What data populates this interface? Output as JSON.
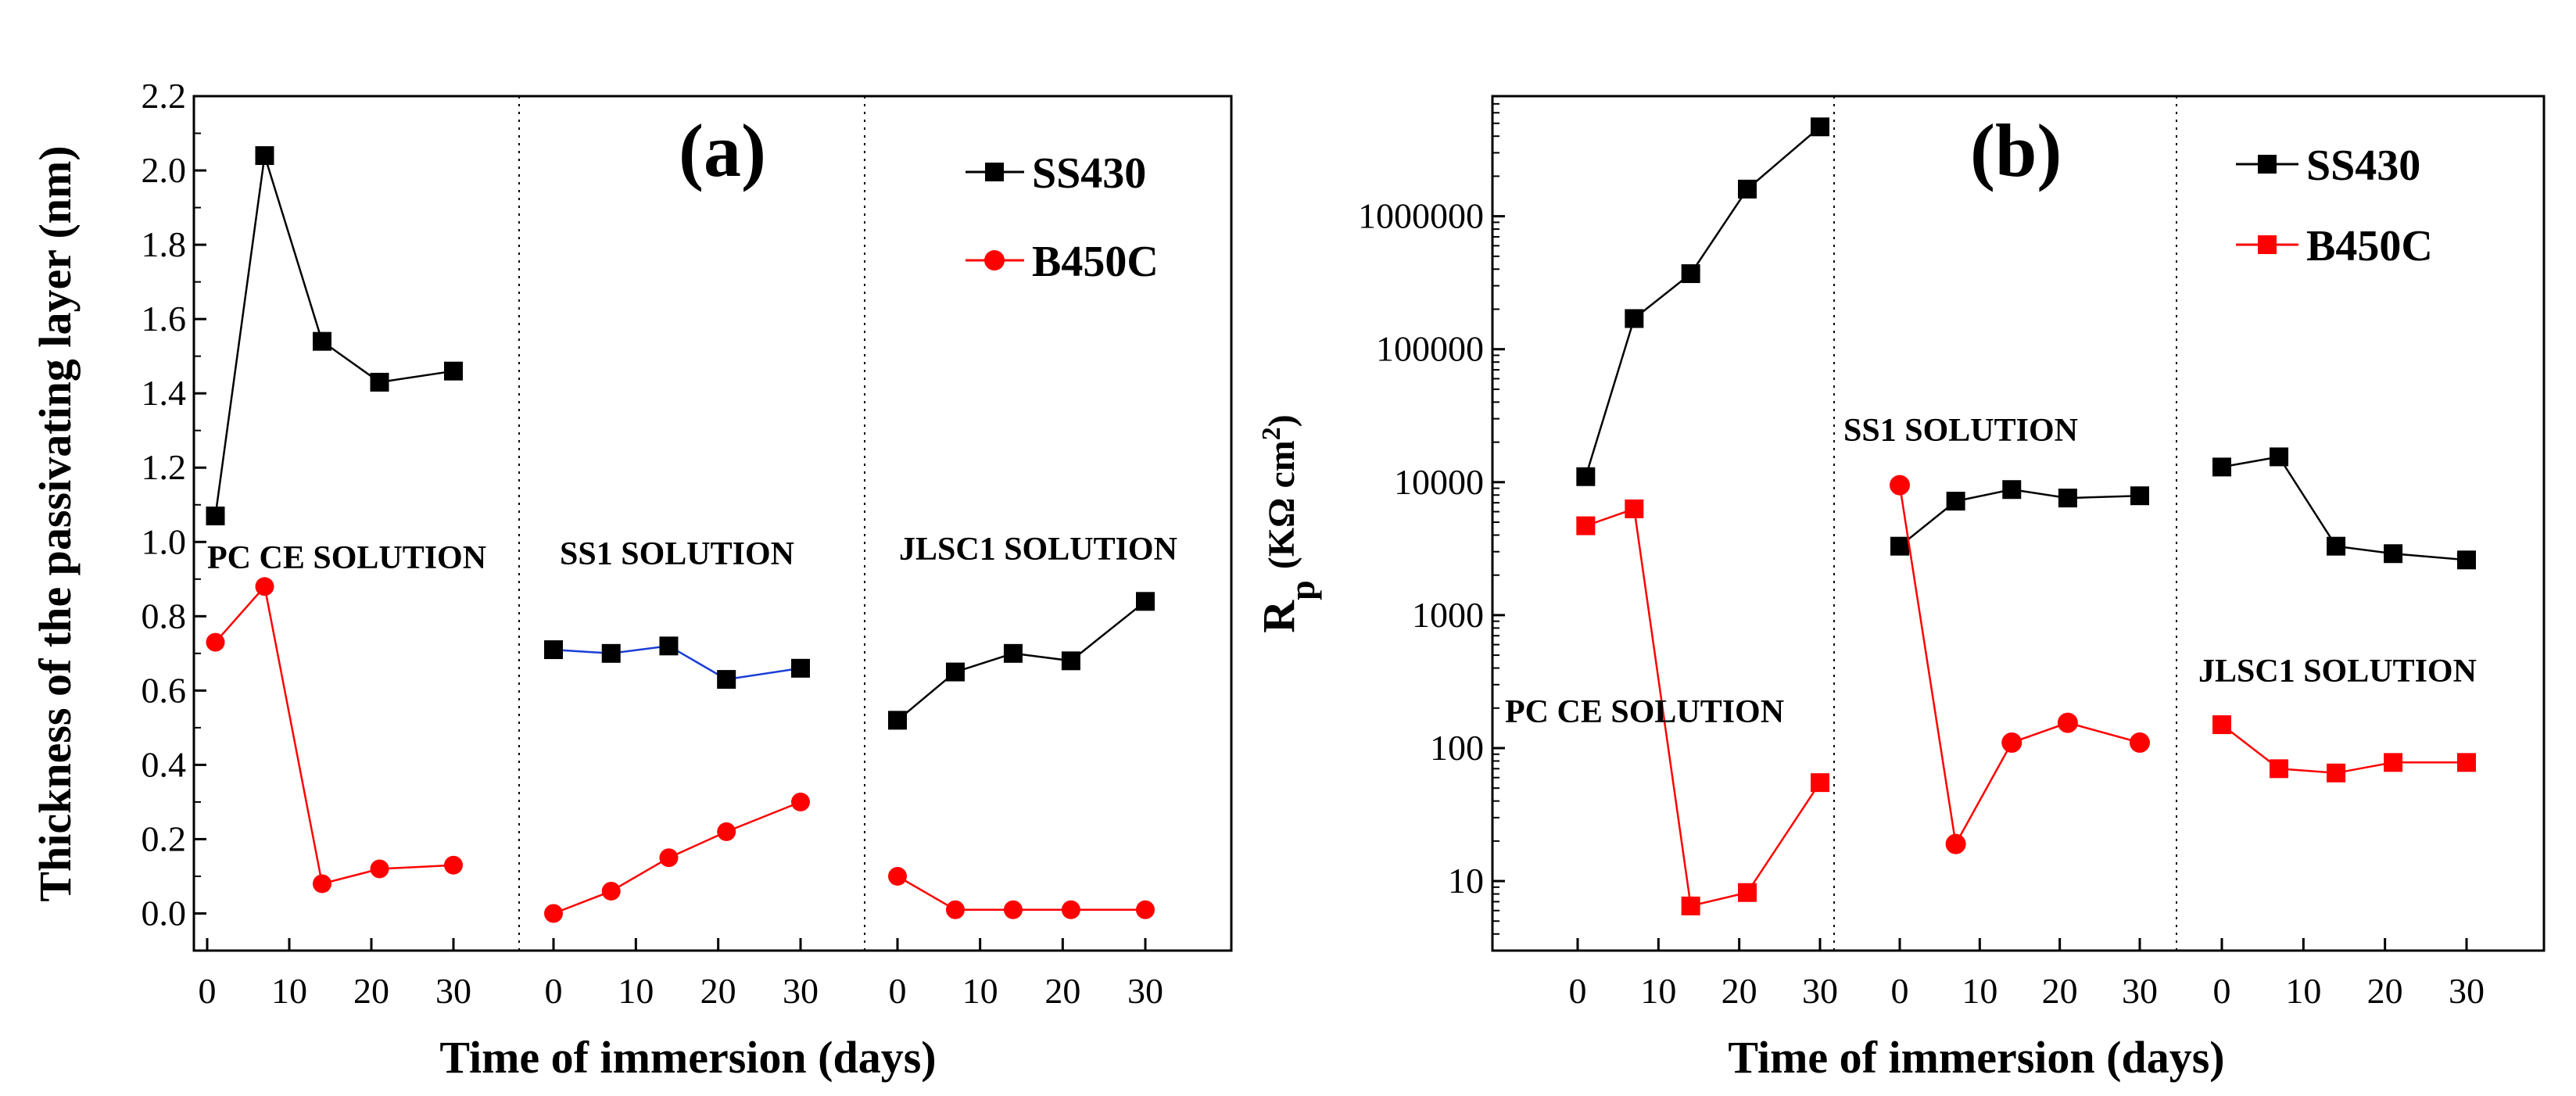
{
  "chart_data": [
    {
      "type": "line",
      "panel_label": "(a)",
      "ylabel": "Thickness of the passivating layer (nm)",
      "xlabel": "Time of immersion (days)",
      "ylim": [
        -0.1,
        2.2
      ],
      "y_ticks": [
        "0.0",
        "0.2",
        "0.4",
        "0.6",
        "0.8",
        "1.0",
        "1.2",
        "1.4",
        "1.6",
        "1.8",
        "2.0",
        "2.2"
      ],
      "x_tick_labels": [
        "0",
        "10",
        "20",
        "30"
      ],
      "legend": [
        {
          "name": "SS430",
          "color": "#000000",
          "marker": "square"
        },
        {
          "name": "B450C",
          "color": "#ff0000",
          "marker": "circle"
        }
      ],
      "regions": [
        {
          "label": "PC CE SOLUTION",
          "x": [
            1,
            7,
            14,
            21,
            30
          ],
          "series": [
            {
              "name": "SS430",
              "values": [
                1.07,
                2.04,
                1.54,
                1.43,
                1.46
              ]
            },
            {
              "name": "B450C",
              "values": [
                0.73,
                0.88,
                0.08,
                0.12,
                0.13
              ]
            }
          ]
        },
        {
          "label": "SS1 SOLUTION",
          "x": [
            0,
            7,
            14,
            21,
            30
          ],
          "series": [
            {
              "name": "SS430",
              "values": [
                0.71,
                0.7,
                0.72,
                0.63,
                0.66
              ]
            },
            {
              "name": "B450C",
              "values": [
                0.0,
                0.06,
                0.15,
                0.22,
                0.3
              ]
            }
          ]
        },
        {
          "label": "JLSC1 SOLUTION",
          "x": [
            0,
            7,
            14,
            21,
            30
          ],
          "series": [
            {
              "name": "SS430",
              "values": [
                0.52,
                0.65,
                0.7,
                0.68,
                0.84
              ]
            },
            {
              "name": "B450C",
              "values": [
                0.1,
                0.01,
                0.01,
                0.01,
                0.01
              ]
            }
          ]
        }
      ]
    },
    {
      "type": "line",
      "panel_label": "(b)",
      "ylabel_main": "R",
      "ylabel_sub": "p",
      "ylabel_units": "(KΩ cm",
      "ylabel_sup": "2",
      "ylabel_close": ")",
      "xlabel": "Time of immersion (days)",
      "yscale": "log",
      "ylim": [
        3,
        8000000
      ],
      "y_ticks": [
        "10",
        "100",
        "1000",
        "10000",
        "100000",
        "1000000"
      ],
      "x_tick_labels": [
        "0",
        "10",
        "20",
        "30"
      ],
      "legend": [
        {
          "name": "SS430",
          "color": "#000000",
          "marker": "square"
        },
        {
          "name": "B450C",
          "color": "#ff0000",
          "marker": "square"
        }
      ],
      "regions": [
        {
          "label": "PC CE SOLUTION",
          "x": [
            1,
            7,
            14,
            21,
            30
          ],
          "series": [
            {
              "name": "SS430",
              "values": [
                11000,
                170000,
                370000,
                1600000,
                4700000
              ]
            },
            {
              "name": "B450C",
              "values": [
                4700,
                6300,
                6.5,
                8.2,
                55
              ]
            }
          ]
        },
        {
          "label": "SS1 SOLUTION",
          "x": [
            0,
            7,
            14,
            21,
            30
          ],
          "series": [
            {
              "name": "SS430",
              "values": [
                3300,
                7200,
                8800,
                7600,
                7900
              ]
            },
            {
              "name": "B450C",
              "values": [
                9500,
                19,
                110,
                155,
                110
              ]
            }
          ]
        },
        {
          "label": "JLSC1 SOLUTION",
          "x": [
            0,
            7,
            14,
            21,
            30
          ],
          "series": [
            {
              "name": "SS430",
              "values": [
                13000,
                15500,
                3300,
                2900,
                2600
              ]
            },
            {
              "name": "B450C",
              "values": [
                150,
                70,
                65,
                78,
                78
              ]
            }
          ]
        }
      ]
    }
  ]
}
